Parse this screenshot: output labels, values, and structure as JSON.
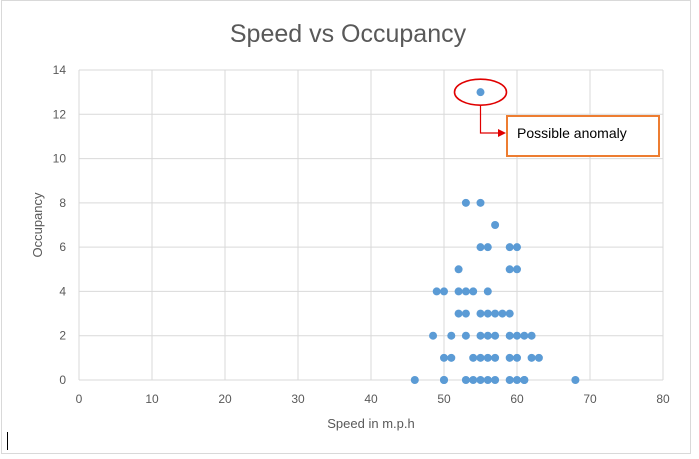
{
  "chart_data": {
    "type": "scatter",
    "title": "Speed vs Occupancy",
    "xlabel": "Speed in m.p.h",
    "ylabel": "Occupancy",
    "xlim": [
      0,
      80
    ],
    "ylim": [
      0,
      14
    ],
    "xticks": [
      "0",
      "10",
      "20",
      "30",
      "40",
      "50",
      "60",
      "70",
      "80"
    ],
    "yticks": [
      "0",
      "2",
      "4",
      "6",
      "8",
      "10",
      "12",
      "14"
    ],
    "grid": true,
    "legend": "none",
    "marker_color": "#5b9bd5",
    "points": [
      {
        "x": 46,
        "y": 0
      },
      {
        "x": 50,
        "y": 0
      },
      {
        "x": 50,
        "y": 0
      },
      {
        "x": 53,
        "y": 0
      },
      {
        "x": 54,
        "y": 0
      },
      {
        "x": 55,
        "y": 0
      },
      {
        "x": 56,
        "y": 0
      },
      {
        "x": 57,
        "y": 0
      },
      {
        "x": 59,
        "y": 0
      },
      {
        "x": 60,
        "y": 0
      },
      {
        "x": 61,
        "y": 0
      },
      {
        "x": 61,
        "y": 0
      },
      {
        "x": 68,
        "y": 0
      },
      {
        "x": 50,
        "y": 1
      },
      {
        "x": 51,
        "y": 1
      },
      {
        "x": 54,
        "y": 1
      },
      {
        "x": 55,
        "y": 1
      },
      {
        "x": 56,
        "y": 1
      },
      {
        "x": 57,
        "y": 1
      },
      {
        "x": 59,
        "y": 1
      },
      {
        "x": 60,
        "y": 1
      },
      {
        "x": 62,
        "y": 1
      },
      {
        "x": 63,
        "y": 1
      },
      {
        "x": 48.5,
        "y": 2
      },
      {
        "x": 51,
        "y": 2
      },
      {
        "x": 53,
        "y": 2
      },
      {
        "x": 55,
        "y": 2
      },
      {
        "x": 56,
        "y": 2
      },
      {
        "x": 57,
        "y": 2
      },
      {
        "x": 59,
        "y": 2
      },
      {
        "x": 60,
        "y": 2
      },
      {
        "x": 61,
        "y": 2
      },
      {
        "x": 62,
        "y": 2
      },
      {
        "x": 52,
        "y": 3
      },
      {
        "x": 53,
        "y": 3
      },
      {
        "x": 55,
        "y": 3
      },
      {
        "x": 56,
        "y": 3
      },
      {
        "x": 57,
        "y": 3
      },
      {
        "x": 58,
        "y": 3
      },
      {
        "x": 59,
        "y": 3
      },
      {
        "x": 49,
        "y": 4
      },
      {
        "x": 50,
        "y": 4
      },
      {
        "x": 52,
        "y": 4
      },
      {
        "x": 53,
        "y": 4
      },
      {
        "x": 54,
        "y": 4
      },
      {
        "x": 56,
        "y": 4
      },
      {
        "x": 52,
        "y": 5
      },
      {
        "x": 59,
        "y": 5
      },
      {
        "x": 60,
        "y": 5
      },
      {
        "x": 55,
        "y": 6
      },
      {
        "x": 56,
        "y": 6
      },
      {
        "x": 59,
        "y": 6
      },
      {
        "x": 60,
        "y": 6
      },
      {
        "x": 57,
        "y": 7
      },
      {
        "x": 53,
        "y": 8
      },
      {
        "x": 55,
        "y": 8
      },
      {
        "x": 55,
        "y": 13
      }
    ],
    "annotation": {
      "text": "Possible anomaly",
      "target": {
        "x": 55,
        "y": 13
      },
      "highlight_color": "#e00000",
      "box_border_color": "#ed7d31"
    }
  }
}
